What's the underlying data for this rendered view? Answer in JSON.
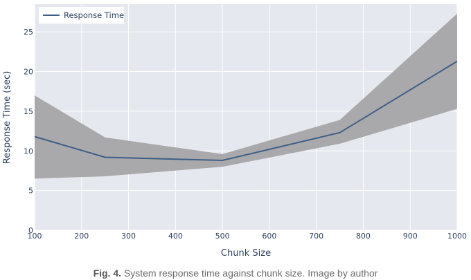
{
  "chart_data": {
    "type": "line",
    "xlabel": "Chunk Size",
    "ylabel": "Response Time (sec)",
    "xlim": [
      100,
      1000
    ],
    "ylim": [
      0,
      28.5
    ],
    "xticks": [
      100,
      200,
      300,
      400,
      500,
      600,
      700,
      800,
      900,
      1000
    ],
    "yticks": [
      0,
      5,
      10,
      15,
      20,
      25
    ],
    "grid": true,
    "legend": "top-left",
    "series": [
      {
        "name": "Response Time",
        "x": [
          100,
          250,
          500,
          750,
          1000
        ],
        "values": [
          11.8,
          9.2,
          8.8,
          12.3,
          21.3
        ],
        "upper": [
          17.0,
          11.7,
          9.6,
          13.9,
          27.3
        ],
        "lower": [
          6.5,
          6.8,
          8.0,
          10.9,
          15.3
        ],
        "color": "#3d5f87",
        "band_color": "#a9a9ab"
      }
    ],
    "plot_background": "#e5e8ef",
    "grid_color": "#ffffff"
  },
  "caption": {
    "label": "Fig. 4.",
    "text": " System response time against chunk size. Image by author"
  }
}
